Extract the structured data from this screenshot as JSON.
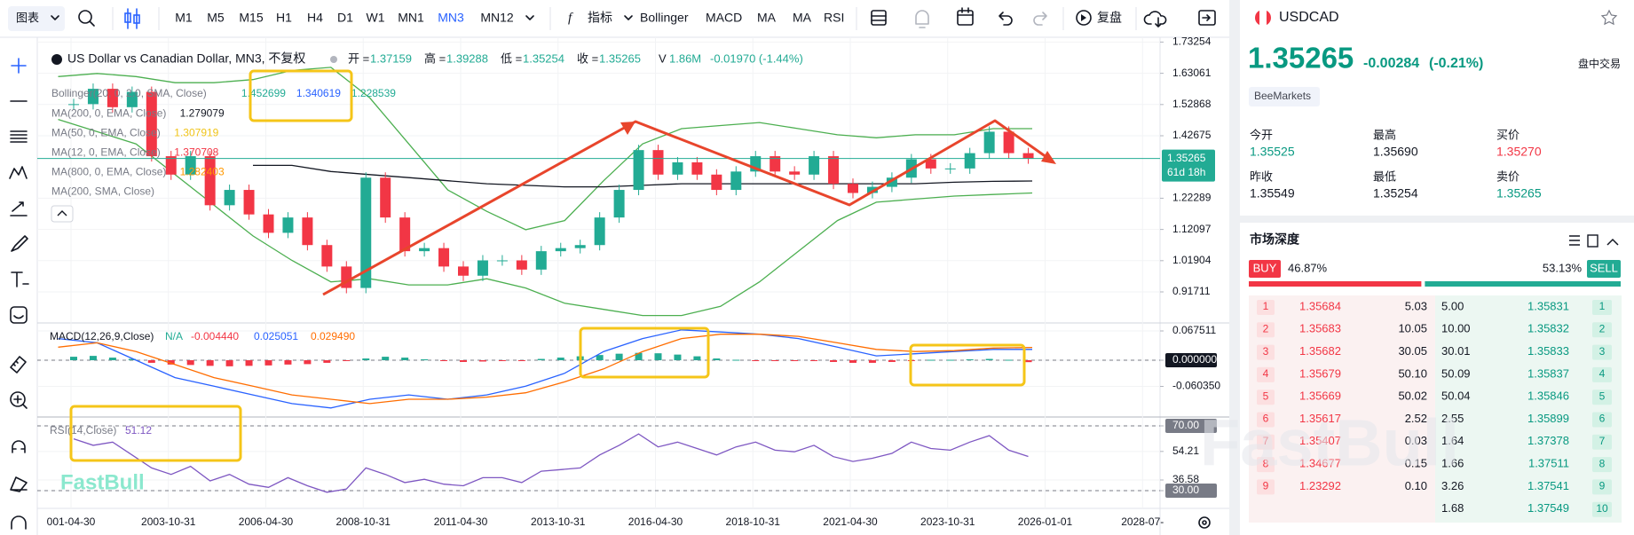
{
  "toolbar": {
    "chart_menu": "图表",
    "timeframes": [
      "M1",
      "M5",
      "M15",
      "H1",
      "H4",
      "D1",
      "W1",
      "MN1",
      "MN3",
      "MN12"
    ],
    "active_timeframe": 8,
    "indicators_button": "指标",
    "indicators": [
      "Bollinger",
      "MACD",
      "MA",
      "MA",
      "RSI"
    ],
    "replay": "复盘"
  },
  "chart_header": {
    "title": "US Dollar vs Canadian Dollar, MN3, 不复权",
    "ohlc": [
      {
        "label": "开 =",
        "value": "1.37159"
      },
      {
        "label": "高 =",
        "value": "1.39288"
      },
      {
        "label": "低 =",
        "value": "1.35254"
      },
      {
        "label": "收 =",
        "value": "1.35265"
      }
    ],
    "volume_label": "V",
    "volume": "1.86M",
    "change": "-0.01970 (-1.44%)"
  },
  "indicator_legend": [
    {
      "label": "Bollinger(20, 0, 2.0, SMA, Close)",
      "values": [
        {
          "text": "1.452699",
          "color": "#22ab94"
        },
        {
          "text": "1.340619",
          "color": "#2962ff"
        },
        {
          "text": "1.228539",
          "color": "#22ab94"
        }
      ]
    },
    {
      "label": "MA(200, 0, EMA, Close)",
      "values": [
        {
          "text": "1.279079",
          "color": "#131722"
        }
      ]
    },
    {
      "label": "MA(50, 0, EMA, Close)",
      "values": [
        {
          "text": "1.307919",
          "color": "#f0c419"
        }
      ]
    },
    {
      "label": "MA(12, 0, EMA, Close)",
      "values": [
        {
          "text": "1.370708",
          "color": "#f23645"
        }
      ]
    },
    {
      "label": "MA(800, 0, EMA, Close)",
      "values": [
        {
          "text": "1.282403",
          "color": "#ff9800"
        }
      ]
    },
    {
      "label": "MA(200, SMA, Close)",
      "values": []
    }
  ],
  "chart_data": [
    {
      "type": "candlestick",
      "up_color": "#22ab94",
      "down_color": "#f23645",
      "values": [
        1.53,
        1.58,
        1.52,
        1.57,
        1.36,
        1.3,
        1.36,
        1.2,
        1.25,
        1.17,
        1.11,
        1.16,
        1.07,
        1.0,
        0.93,
        1.29,
        1.16,
        1.05,
        1.06,
        1.0,
        0.97,
        1.02,
        1.02,
        0.99,
        1.05,
        1.06,
        1.07,
        1.16,
        1.25,
        1.38,
        1.3,
        1.34,
        1.3,
        1.25,
        1.31,
        1.36,
        1.31,
        1.3,
        1.36,
        1.27,
        1.24,
        1.26,
        1.29,
        1.35,
        1.32,
        1.32,
        1.37,
        1.44,
        1.37,
        1.35265
      ],
      "overlays": [
        {
          "color": "#4caf50",
          "values": [
            1.62,
            1.63,
            1.62,
            1.6,
            1.6,
            1.61,
            1.64,
            1.65,
            1.55,
            1.4,
            1.25,
            1.18,
            1.12,
            1.15,
            1.28,
            1.4,
            1.45,
            1.46,
            1.47,
            1.45,
            1.43,
            1.42,
            1.43,
            1.43,
            1.45,
            1.45
          ]
        },
        {
          "color": "#4caf50",
          "values": [
            1.48,
            1.44,
            1.4,
            1.3,
            1.2,
            1.1,
            1.02,
            0.95,
            0.96,
            0.94,
            0.94,
            0.96,
            0.93,
            0.88,
            0.86,
            0.84,
            0.84,
            0.87,
            0.95,
            1.05,
            1.15,
            1.21,
            1.22,
            1.23,
            1.235,
            1.24
          ]
        },
        {
          "color": "#131722",
          "values": [
            null,
            null,
            null,
            null,
            null,
            1.33,
            1.33,
            1.31,
            1.3,
            1.29,
            1.28,
            1.27,
            1.265,
            1.26,
            1.26,
            1.265,
            1.27,
            1.27,
            1.27,
            1.27,
            1.27,
            1.27,
            1.27,
            1.275,
            1.278,
            1.279079
          ]
        }
      ],
      "ylim": [
        0.8158,
        1.7482
      ],
      "yticks": [
        1.73254,
        1.63061,
        1.52868,
        1.42675,
        1.22289,
        1.12097,
        1.01904,
        0.91711
      ],
      "last_price": 1.35265,
      "countdown": "61d 18h"
    },
    {
      "type": "macd",
      "title": "MACD(12,26,9,Close)",
      "header_values": [
        {
          "text": "N/A",
          "color": "#22ab94"
        },
        {
          "text": "-0.004440",
          "color": "#f23645"
        },
        {
          "text": "0.025051",
          "color": "#2962ff"
        },
        {
          "text": "0.029490",
          "color": "#ff6d00"
        }
      ],
      "up_color": "#22ab94",
      "down_color": "#f23645",
      "histogram": [
        0.008,
        0.01,
        0.006,
        0.003,
        -0.006,
        -0.01,
        -0.011,
        -0.013,
        -0.014,
        -0.013,
        -0.012,
        -0.01,
        -0.009,
        -0.006,
        -0.002,
        0.004,
        0.008,
        0.006,
        0.002,
        -0.002,
        -0.004,
        -0.003,
        -0.002,
        -0.001,
        0.003,
        0.006,
        0.009,
        0.012,
        0.015,
        0.017,
        0.016,
        0.013,
        0.009,
        0.004,
        0.001,
        -0.001,
        -0.002,
        -0.002,
        -0.002,
        -0.004,
        -0.006,
        -0.006,
        -0.004,
        -0.001,
        0.001,
        0.001,
        0.002,
        0.003,
        0.001,
        -0.00444
      ],
      "series": [
        {
          "color": "#2962ff",
          "values": [
            0.05,
            0.04,
            0.0,
            -0.04,
            -0.06,
            -0.08,
            -0.1,
            -0.11,
            -0.09,
            -0.08,
            -0.09,
            -0.08,
            -0.06,
            -0.03,
            0.02,
            0.05,
            0.07,
            0.065,
            0.06,
            0.05,
            0.03,
            0.01,
            0.015,
            0.02,
            0.025,
            0.025051
          ]
        },
        {
          "color": "#ff6d00",
          "values": [
            0.03,
            0.04,
            0.02,
            -0.01,
            -0.04,
            -0.06,
            -0.08,
            -0.09,
            -0.1,
            -0.09,
            -0.09,
            -0.085,
            -0.075,
            -0.05,
            -0.02,
            0.02,
            0.05,
            0.06,
            0.06,
            0.055,
            0.04,
            0.025,
            0.02,
            0.022,
            0.028,
            0.02949
          ]
        }
      ],
      "ylim": [
        -0.1309,
        0.0859
      ],
      "yticks": [
        0.067511,
        {
          "value": 0,
          "label": "0.000000"
        },
        {
          "value": -0.06035,
          "label": "-0.060350"
        }
      ]
    },
    {
      "type": "line",
      "title": "RSI(14,Close)",
      "header_value": "51.12",
      "color": "#7e57c2",
      "values": [
        62,
        58,
        60,
        52,
        44,
        40,
        45,
        36,
        40,
        34,
        32,
        38,
        33,
        29,
        31,
        44,
        40,
        35,
        37,
        34,
        33,
        38,
        38,
        35,
        42,
        43,
        44,
        52,
        58,
        65,
        57,
        60,
        56,
        52,
        57,
        60,
        55,
        54,
        58,
        51,
        48,
        50,
        53,
        60,
        56,
        55,
        60,
        64,
        55,
        51.12
      ],
      "ylim": [
        19.04,
        75.48
      ],
      "yticks": [
        {
          "value": 70,
          "label": "70.00"
        },
        54.21,
        36.58,
        {
          "value": 30,
          "label": "30.00"
        }
      ]
    }
  ],
  "x_axis": {
    "labels": [
      "001-04-30",
      "2003-10-31",
      "2006-04-30",
      "2008-10-31",
      "2011-04-30",
      "2013-10-31",
      "2016-04-30",
      "2018-10-31",
      "2021-04-30",
      "2023-10-31",
      "2026-01-01",
      "2028-07-"
    ]
  },
  "panel": {
    "symbol": "USDCAD",
    "price": "1.35265",
    "change": "-0.00284",
    "change_pct": "(-0.21%)",
    "session": "盘中交易",
    "broker": "BeeMarkets",
    "stats": [
      {
        "label": "今开",
        "value": "1.35525",
        "color": "#089981"
      },
      {
        "label": "最高",
        "value": "1.35690",
        "color": "#131722"
      },
      {
        "label": "买价",
        "value": "1.35270",
        "color": "#f23645"
      },
      {
        "label": "昨收",
        "value": "1.35549",
        "color": "#131722"
      },
      {
        "label": "最低",
        "value": "1.35254",
        "color": "#131722"
      },
      {
        "label": "卖价",
        "value": "1.35265",
        "color": "#089981"
      }
    ],
    "depth_title": "市场深度",
    "buy_label": "BUY",
    "buy_pct": {
      "value": 46.87,
      "label": "46.87%"
    },
    "sell_pct": {
      "value": 53.13,
      "label": "53.13%"
    },
    "sell_label": "SELL",
    "bids": [
      [
        "1",
        "1.35684",
        "5.03"
      ],
      [
        "2",
        "1.35683",
        "10.05"
      ],
      [
        "3",
        "1.35682",
        "30.05"
      ],
      [
        "4",
        "1.35679",
        "50.10"
      ],
      [
        "5",
        "1.35669",
        "50.02"
      ],
      [
        "6",
        "1.35617",
        "2.52"
      ],
      [
        "7",
        "1.35407",
        "0.03"
      ],
      [
        "8",
        "1.34677",
        "0.15"
      ],
      [
        "9",
        "1.23292",
        "0.10"
      ]
    ],
    "asks": [
      [
        "5.00",
        "1.35831",
        "1"
      ],
      [
        "10.00",
        "1.35832",
        "2"
      ],
      [
        "30.01",
        "1.35833",
        "3"
      ],
      [
        "50.09",
        "1.35837",
        "4"
      ],
      [
        "50.04",
        "1.35846",
        "5"
      ],
      [
        "2.55",
        "1.35899",
        "6"
      ],
      [
        "1.64",
        "1.37378",
        "7"
      ],
      [
        "1.66",
        "1.37511",
        "8"
      ],
      [
        "3.26",
        "1.37541",
        "9"
      ],
      [
        "1.68",
        "1.37549",
        "10"
      ]
    ]
  },
  "watermark": "FastBull"
}
